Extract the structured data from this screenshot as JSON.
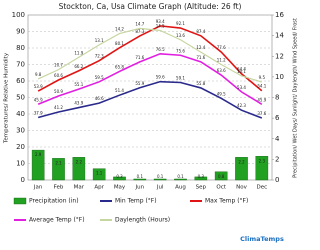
{
  "chart_data": {
    "type": "combo",
    "title": "Stockton, Ca, Usa Climate Graph (Altitude: 26 ft)",
    "y_label": "Temperatures/ Relative Humidity",
    "y2_label": "Precipitation/ Wet Days/ Sunlight/ Daylength/ Wind Speed/ Frost",
    "watermark": "ClimaTemps",
    "categories": [
      "Jan",
      "Feb",
      "Mar",
      "Apr",
      "May",
      "Jun",
      "Jul",
      "Aug",
      "Sep",
      "Oct",
      "Nov",
      "Dec"
    ],
    "ylim": [
      0,
      100
    ],
    "yticks": [
      0,
      10,
      20,
      30,
      40,
      50,
      60,
      70,
      80,
      90,
      100
    ],
    "y2lim": [
      0,
      16
    ],
    "y2ticks": [
      0,
      2,
      4,
      6,
      8,
      10,
      12,
      14,
      16
    ],
    "grid": true,
    "series": [
      {
        "name": "Precipitation (in)",
        "kind": "bar",
        "axis": "y2",
        "color": "#22a022",
        "values": [
          2.9,
          2.1,
          2.2,
          1.1,
          0.3,
          0.1,
          0.1,
          0.1,
          0.3,
          0.8,
          2.2,
          2.3
        ]
      },
      {
        "name": "Min Temp (°F)",
        "kind": "line",
        "color": "#2a2a8c",
        "values": [
          37.9,
          41.2,
          43.9,
          46.6,
          51.4,
          55.9,
          59.6,
          59.1,
          55.8,
          49.5,
          42.3,
          37.6
        ]
      },
      {
        "name": "Max Temp (°F)",
        "kind": "line",
        "color": "#e01414",
        "values": [
          53.9,
          60.6,
          66.2,
          72.3,
          80.1,
          87.3,
          93.4,
          92.1,
          87.4,
          77.6,
          64.4,
          54.1
        ]
      },
      {
        "name": "Average Temp (°F)",
        "kind": "line",
        "color": "#e020e0",
        "values": [
          45.9,
          50.9,
          55.1,
          59.5,
          65.8,
          71.6,
          76.5,
          75.6,
          71.6,
          63.6,
          53.4,
          45.9
        ]
      },
      {
        "name": "Daylength (Hours)",
        "kind": "line",
        "axis": "y2",
        "color": "#c6d6a0",
        "values": [
          9.8,
          10.7,
          11.9,
          13.1,
          14.2,
          14.7,
          14.5,
          13.6,
          12.4,
          11.2,
          10.1,
          9.5
        ]
      }
    ]
  }
}
